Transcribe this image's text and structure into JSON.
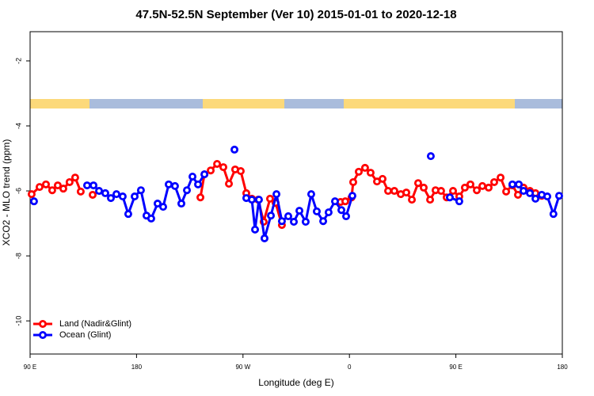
{
  "chart_data": {
    "type": "line",
    "title": "47.5N-52.5N September (Ver 10)   2015-01-01 to 2020-12-18",
    "x_label": "Longitude (deg E)",
    "y_label": "XCO2 - MLO trend (ppm)",
    "xlim": [
      90,
      540
    ],
    "xticks": [
      {
        "value": 90,
        "label": "90 E"
      },
      {
        "value": 180,
        "label": "180"
      },
      {
        "value": 270,
        "label": "90 W"
      },
      {
        "value": 360,
        "label": "0"
      },
      {
        "value": 450,
        "label": "90 E"
      },
      {
        "value": 540,
        "label": "180"
      }
    ],
    "ylim": [
      -11.02,
      -1.1
    ],
    "yticks": [
      -2,
      -4,
      -6,
      -8,
      -10
    ],
    "legend": "lower left",
    "series": [
      {
        "name": "Land (Nadir&Glint)",
        "color": "#ff0000",
        "x": [
          91.3,
          98.0,
          103.4,
          108.7,
          113.4,
          118.1,
          123.4,
          128.1,
          132.8,
          null,
          142.9,
          null,
          234.0,
          237.4,
          242.7,
          248.1,
          253.4,
          258.1,
          263.4,
          268.1,
          272.8,
          277.5,
          282.8,
          287.5,
          292.9,
          297.6,
          302.9,
          null,
          352.5,
          356.5,
          361.8,
          363.2,
          367.9,
          373.2,
          377.9,
          383.3,
          388.0,
          392.7,
          398.0,
          403.4,
          408.1,
          412.8,
          418.1,
          422.8,
          428.2,
          432.8,
          437.5,
          442.2,
          447.6,
          452.9,
          457.6,
          462.3,
          467.7,
          472.4,
          477.7,
          482.4,
          487.8,
          492.5,
          497.8,
          502.5,
          507.2,
          512.6,
          517.3,
          522.6
        ],
        "values": [
          -6.1,
          -5.88,
          -5.8,
          -5.98,
          -5.83,
          -5.93,
          -5.73,
          -5.59,
          -6.02,
          null,
          -6.12,
          null,
          -6.2,
          -5.49,
          -5.37,
          -5.17,
          -5.27,
          -5.78,
          -5.34,
          -5.39,
          -6.07,
          -6.24,
          -6.27,
          -6.95,
          -6.24,
          -6.37,
          -7.05,
          null,
          -6.34,
          -6.32,
          -6.2,
          -5.73,
          -5.41,
          -5.29,
          -5.44,
          -5.71,
          -5.63,
          -6.0,
          -6.0,
          -6.1,
          -6.05,
          -6.27,
          -5.76,
          -5.9,
          -6.27,
          -5.98,
          -6.0,
          -6.2,
          -6.0,
          -6.17,
          -5.9,
          -5.8,
          -5.98,
          -5.85,
          -5.9,
          -5.73,
          -5.59,
          -6.02,
          -5.83,
          -6.12,
          -5.9,
          -6.0,
          -6.07,
          -6.15
        ]
      },
      {
        "name": "Ocean (Glint)",
        "color": "#0000ff",
        "x": [
          93.3,
          null,
          138.2,
          143.6,
          148.3,
          153.6,
          158.3,
          163.0,
          168.3,
          173.0,
          178.4,
          183.7,
          188.4,
          192.4,
          197.8,
          202.5,
          207.2,
          212.5,
          217.9,
          222.6,
          227.3,
          232.0,
          237.4,
          null,
          262.8,
          null,
          272.8,
          277.5,
          280.2,
          283.5,
          288.2,
          293.6,
          298.3,
          302.9,
          308.3,
          313.0,
          317.7,
          323.0,
          327.7,
          332.4,
          337.8,
          342.4,
          347.8,
          353.2,
          357.2,
          362.5,
          null,
          428.8,
          null,
          444.9,
          452.9,
          null,
          497.8,
          503.2,
          507.2,
          512.6,
          517.3,
          522.6,
          527.3,
          532.5,
          537.3
        ],
        "values": [
          -6.32,
          null,
          -5.83,
          -5.83,
          -6.0,
          -6.07,
          -6.22,
          -6.1,
          -6.17,
          -6.71,
          -6.17,
          -5.98,
          -6.76,
          -6.85,
          -6.39,
          -6.49,
          -5.8,
          -5.85,
          -6.39,
          -5.98,
          -5.56,
          -5.8,
          -5.49,
          null,
          -4.73,
          null,
          -6.22,
          -6.27,
          -7.19,
          -6.27,
          -7.46,
          -6.76,
          -6.1,
          -6.93,
          -6.78,
          -6.95,
          -6.61,
          -6.95,
          -6.1,
          -6.63,
          -6.93,
          -6.66,
          -6.32,
          -6.59,
          -6.78,
          -6.15,
          null,
          -4.93,
          null,
          -6.2,
          -6.32,
          null,
          -5.8,
          -5.8,
          -6.0,
          -6.07,
          -6.24,
          -6.12,
          -6.17,
          -6.71,
          -6.15
        ]
      }
    ]
  }
}
